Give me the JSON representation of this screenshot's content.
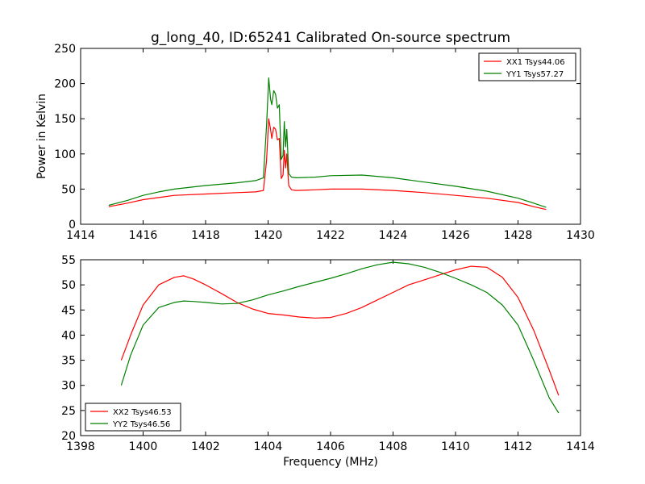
{
  "chart_data": [
    {
      "type": "line",
      "title": "g_long_40, ID:65241 Calibrated On-source spectrum",
      "xlabel": "",
      "ylabel": "Power in Kelvin",
      "xlim": [
        1414,
        1430
      ],
      "ylim": [
        0,
        250
      ],
      "xticks": [
        1414,
        1416,
        1418,
        1420,
        1422,
        1424,
        1426,
        1428,
        1430
      ],
      "yticks": [
        0,
        50,
        100,
        150,
        200,
        250
      ],
      "legend_position": "top-right",
      "series": [
        {
          "name": "XX1 Tsys44.06",
          "color": "#ff0000",
          "x": [
            1414.9,
            1415.5,
            1416.0,
            1416.5,
            1417.0,
            1418.0,
            1419.0,
            1419.6,
            1419.85,
            1419.95,
            1420.02,
            1420.08,
            1420.12,
            1420.18,
            1420.24,
            1420.3,
            1420.36,
            1420.42,
            1420.48,
            1420.52,
            1420.56,
            1420.6,
            1420.66,
            1420.75,
            1420.9,
            1421.5,
            1422.0,
            1423.0,
            1424.0,
            1425.0,
            1426.0,
            1427.0,
            1428.0,
            1428.5,
            1428.9
          ],
          "values": [
            25,
            30,
            35,
            38,
            41,
            43,
            45,
            46,
            48,
            90,
            150,
            135,
            122,
            138,
            135,
            120,
            122,
            65,
            70,
            105,
            80,
            100,
            55,
            49,
            48,
            49,
            50,
            50,
            48,
            45,
            41,
            37,
            31,
            25,
            21
          ]
        },
        {
          "name": "YY1 Tsys57.27",
          "color": "#008000",
          "x": [
            1414.9,
            1415.5,
            1416.0,
            1416.5,
            1417.0,
            1418.0,
            1419.0,
            1419.6,
            1419.85,
            1419.95,
            1420.02,
            1420.08,
            1420.12,
            1420.18,
            1420.24,
            1420.3,
            1420.36,
            1420.42,
            1420.48,
            1420.52,
            1420.56,
            1420.6,
            1420.66,
            1420.75,
            1420.9,
            1421.5,
            1422.0,
            1423.0,
            1424.0,
            1425.0,
            1426.0,
            1427.0,
            1428.0,
            1428.5,
            1428.9
          ],
          "values": [
            27,
            34,
            41,
            46,
            50,
            55,
            59,
            62,
            66,
            140,
            208,
            178,
            170,
            190,
            185,
            165,
            170,
            92,
            98,
            146,
            110,
            135,
            72,
            67,
            66,
            67,
            69,
            70,
            66,
            60,
            54,
            47,
            37,
            30,
            24
          ]
        }
      ]
    },
    {
      "type": "line",
      "title": "",
      "xlabel": "Frequency (MHz)",
      "ylabel": "",
      "xlim": [
        1398,
        1414
      ],
      "ylim": [
        20,
        55
      ],
      "xticks": [
        1398,
        1400,
        1402,
        1404,
        1406,
        1408,
        1410,
        1412,
        1414
      ],
      "yticks": [
        20,
        25,
        30,
        35,
        40,
        45,
        50,
        55
      ],
      "legend_position": "bottom-left",
      "series": [
        {
          "name": "XX2 Tsys46.53",
          "color": "#ff0000",
          "x": [
            1399.3,
            1399.6,
            1400.0,
            1400.5,
            1401.0,
            1401.3,
            1401.6,
            1402.0,
            1402.5,
            1403.0,
            1403.5,
            1404.0,
            1404.5,
            1405.0,
            1405.5,
            1406.0,
            1406.5,
            1407.0,
            1407.5,
            1408.0,
            1408.5,
            1409.0,
            1409.5,
            1410.0,
            1410.5,
            1411.0,
            1411.5,
            1412.0,
            1412.5,
            1413.0,
            1413.3
          ],
          "values": [
            35,
            40,
            46,
            50,
            51.5,
            51.8,
            51.2,
            50,
            48.3,
            46.5,
            45.2,
            44.3,
            44,
            43.6,
            43.4,
            43.5,
            44.3,
            45.5,
            47,
            48.5,
            50,
            51,
            52,
            53,
            53.7,
            53.5,
            51.5,
            47.5,
            41,
            33,
            28
          ]
        },
        {
          "name": "YY2 Tsys46.56",
          "color": "#008000",
          "x": [
            1399.3,
            1399.6,
            1400.0,
            1400.5,
            1401.0,
            1401.3,
            1401.6,
            1402.0,
            1402.5,
            1403.0,
            1403.5,
            1404.0,
            1404.5,
            1405.0,
            1405.5,
            1406.0,
            1406.5,
            1407.0,
            1407.5,
            1408.0,
            1408.5,
            1409.0,
            1409.5,
            1410.0,
            1410.5,
            1411.0,
            1411.5,
            1412.0,
            1412.5,
            1413.0,
            1413.3
          ],
          "values": [
            30,
            36,
            42,
            45.5,
            46.5,
            46.8,
            46.7,
            46.5,
            46.2,
            46.3,
            47,
            48,
            48.8,
            49.7,
            50.5,
            51.3,
            52.2,
            53.2,
            54,
            54.5,
            54.2,
            53.5,
            52.5,
            51.3,
            50,
            48.5,
            46,
            42,
            35,
            27.5,
            24.5
          ]
        }
      ]
    }
  ]
}
